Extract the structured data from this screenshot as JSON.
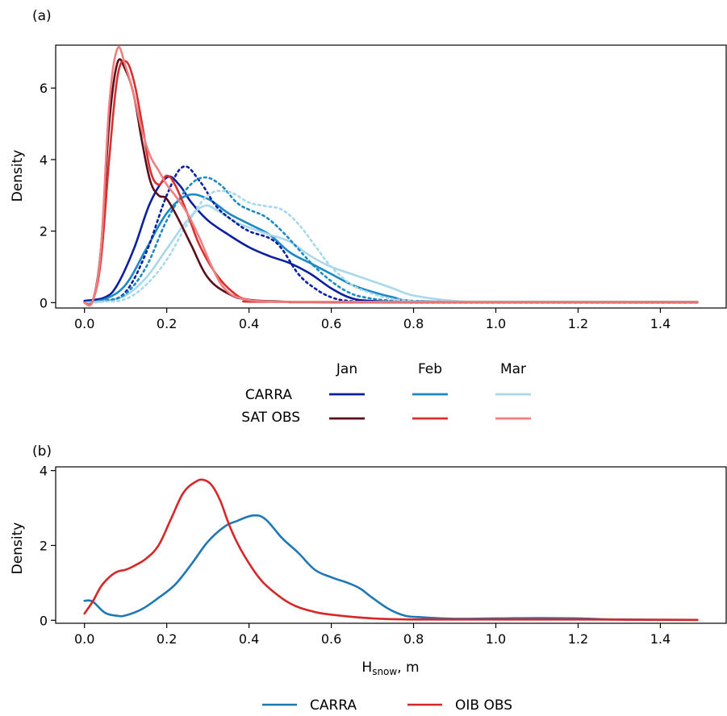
{
  "chart_data": [
    {
      "type": "line",
      "panel_label": "(a)",
      "xlabel": "",
      "ylabel": "Density",
      "xlim": [
        -0.07,
        1.56
      ],
      "ylim": [
        -0.15,
        7.2
      ],
      "xticks": [
        0.0,
        0.2,
        0.4,
        0.6,
        0.8,
        1.0,
        1.2,
        1.4
      ],
      "xtick_labels": [
        "0.0",
        "0.2",
        "0.4",
        "0.6",
        "0.8",
        "1.0",
        "1.2",
        "1.4"
      ],
      "yticks": [
        0,
        2,
        4,
        6
      ],
      "ytick_labels": [
        "0",
        "2",
        "4",
        "6"
      ],
      "grid": false,
      "legend": {
        "placement": "below",
        "columns": [
          "Jan",
          "Feb",
          "Mar"
        ],
        "rows": [
          "CARRA",
          "SAT OBS"
        ],
        "colors": [
          [
            "#0a1fa0",
            "#1b8ac4",
            "#a8d8ea"
          ],
          [
            "#5a0e1c",
            "#d8302e",
            "#f08080"
          ]
        ]
      },
      "series": [
        {
          "name": "CARRA Jan",
          "color": "#0a1fa0",
          "style": "solid",
          "x": [
            0.0,
            0.05,
            0.08,
            0.12,
            0.16,
            0.2,
            0.23,
            0.26,
            0.3,
            0.35,
            0.4,
            0.45,
            0.5,
            0.55,
            0.6,
            0.65,
            0.7,
            0.8,
            1.0,
            1.49
          ],
          "y": [
            0.05,
            0.15,
            0.5,
            1.5,
            2.8,
            3.5,
            3.3,
            2.8,
            2.3,
            1.9,
            1.55,
            1.3,
            1.1,
            0.8,
            0.4,
            0.12,
            0.05,
            0.02,
            0.02,
            0.02
          ]
        },
        {
          "name": "CARRA Feb",
          "color": "#1b8ac4",
          "style": "solid",
          "x": [
            0.0,
            0.05,
            0.1,
            0.15,
            0.2,
            0.25,
            0.3,
            0.35,
            0.4,
            0.45,
            0.5,
            0.55,
            0.6,
            0.65,
            0.7,
            0.75,
            0.8,
            1.0,
            1.49
          ],
          "y": [
            0.0,
            0.1,
            0.5,
            1.5,
            2.5,
            3.0,
            2.9,
            2.5,
            2.2,
            1.9,
            1.4,
            1.1,
            0.8,
            0.5,
            0.3,
            0.15,
            0.05,
            0.02,
            0.02
          ]
        },
        {
          "name": "CARRA Mar",
          "color": "#a8d8ea",
          "style": "solid",
          "x": [
            0.0,
            0.05,
            0.1,
            0.15,
            0.2,
            0.25,
            0.29,
            0.32,
            0.36,
            0.4,
            0.45,
            0.5,
            0.55,
            0.6,
            0.65,
            0.7,
            0.75,
            0.8,
            0.9,
            1.0,
            1.49
          ],
          "y": [
            0.0,
            0.05,
            0.2,
            0.7,
            1.5,
            2.3,
            2.7,
            2.6,
            2.3,
            2.1,
            1.9,
            1.7,
            1.3,
            1.0,
            0.8,
            0.6,
            0.4,
            0.2,
            0.05,
            0.03,
            0.03
          ]
        },
        {
          "name": "CARRA Jan (dotted)",
          "color": "#0a1fa0",
          "style": "dotted",
          "x": [
            0.0,
            0.05,
            0.1,
            0.15,
            0.2,
            0.24,
            0.28,
            0.32,
            0.36,
            0.4,
            0.45,
            0.48,
            0.52,
            0.56,
            0.6,
            0.64,
            0.7,
            0.8,
            1.49
          ],
          "y": [
            0.0,
            0.05,
            0.3,
            1.4,
            3.0,
            3.8,
            3.4,
            2.7,
            2.3,
            2.0,
            1.8,
            1.5,
            0.8,
            0.4,
            0.15,
            0.05,
            0.02,
            0.01,
            0.01
          ]
        },
        {
          "name": "CARRA Feb (dotted)",
          "color": "#1b8ac4",
          "style": "dotted",
          "x": [
            0.0,
            0.05,
            0.1,
            0.15,
            0.2,
            0.25,
            0.29,
            0.33,
            0.37,
            0.4,
            0.44,
            0.48,
            0.52,
            0.56,
            0.6,
            0.64,
            0.68,
            0.75,
            0.85,
            1.49
          ],
          "y": [
            0.0,
            0.05,
            0.25,
            1.0,
            2.3,
            3.2,
            3.5,
            3.3,
            2.8,
            2.6,
            2.4,
            2.0,
            1.5,
            1.0,
            0.6,
            0.3,
            0.15,
            0.05,
            0.02,
            0.02
          ]
        },
        {
          "name": "CARRA Mar (dotted)",
          "color": "#a8d8ea",
          "style": "dotted",
          "x": [
            0.0,
            0.05,
            0.1,
            0.15,
            0.2,
            0.25,
            0.3,
            0.35,
            0.4,
            0.44,
            0.48,
            0.52,
            0.56,
            0.6,
            0.65,
            0.7,
            0.75,
            0.8,
            0.9,
            1.49
          ],
          "y": [
            0.0,
            0.03,
            0.1,
            0.5,
            1.2,
            2.2,
            3.0,
            3.1,
            2.8,
            2.7,
            2.6,
            2.2,
            1.6,
            1.0,
            0.5,
            0.25,
            0.1,
            0.05,
            0.02,
            0.02
          ]
        },
        {
          "name": "SAT OBS Jan",
          "color": "#5a0e1c",
          "style": "solid",
          "x": [
            0.0,
            0.02,
            0.04,
            0.06,
            0.08,
            0.1,
            0.12,
            0.14,
            0.16,
            0.18,
            0.2,
            0.23,
            0.26,
            0.3,
            0.35,
            0.4,
            0.5,
            0.6,
            1.49
          ],
          "y": [
            0.0,
            0.05,
            1.5,
            5.0,
            6.7,
            6.5,
            5.8,
            4.5,
            3.4,
            3.0,
            2.9,
            2.3,
            1.6,
            0.7,
            0.25,
            0.08,
            0.02,
            0.01,
            0.01
          ]
        },
        {
          "name": "SAT OBS Feb",
          "color": "#d8302e",
          "style": "solid",
          "x": [
            0.0,
            0.02,
            0.04,
            0.06,
            0.08,
            0.1,
            0.12,
            0.14,
            0.16,
            0.18,
            0.2,
            0.22,
            0.25,
            0.28,
            0.32,
            0.36,
            0.4,
            0.5,
            1.49
          ],
          "y": [
            0.0,
            0.05,
            1.2,
            4.0,
            6.3,
            6.75,
            6.2,
            5.0,
            3.7,
            3.3,
            3.55,
            3.3,
            2.5,
            1.6,
            0.8,
            0.3,
            0.08,
            0.02,
            0.02
          ]
        },
        {
          "name": "SAT OBS Mar",
          "color": "#f08080",
          "style": "solid",
          "x": [
            0.0,
            0.02,
            0.04,
            0.06,
            0.08,
            0.1,
            0.12,
            0.14,
            0.16,
            0.18,
            0.2,
            0.22,
            0.25,
            0.28,
            0.31,
            0.34,
            0.38,
            0.45,
            0.6,
            1.49
          ],
          "y": [
            0.0,
            0.05,
            1.5,
            5.5,
            7.1,
            6.6,
            5.8,
            4.8,
            4.1,
            3.7,
            3.3,
            3.0,
            2.5,
            1.8,
            1.0,
            0.4,
            0.12,
            0.03,
            0.02,
            0.02
          ]
        }
      ]
    },
    {
      "type": "line",
      "panel_label": "(b)",
      "xlabel": "H",
      "xlabel_sub": "snow",
      "xlabel_suffix": ", m",
      "ylabel": "Density",
      "xlim": [
        -0.07,
        1.56
      ],
      "ylim": [
        -0.08,
        4.1
      ],
      "xticks": [
        0.0,
        0.2,
        0.4,
        0.6,
        0.8,
        1.0,
        1.2,
        1.4
      ],
      "xtick_labels": [
        "0.0",
        "0.2",
        "0.4",
        "0.6",
        "0.8",
        "1.0",
        "1.2",
        "1.4"
      ],
      "yticks": [
        0,
        2,
        4
      ],
      "ytick_labels": [
        "0",
        "2",
        "4"
      ],
      "grid": false,
      "legend": {
        "placement": "below"
      },
      "series": [
        {
          "name": "CARRA",
          "color": "#1f77b4",
          "style": "solid",
          "x": [
            0.0,
            0.02,
            0.05,
            0.08,
            0.1,
            0.14,
            0.18,
            0.22,
            0.26,
            0.3,
            0.34,
            0.37,
            0.41,
            0.44,
            0.48,
            0.52,
            0.56,
            0.6,
            0.64,
            0.67,
            0.7,
            0.74,
            0.78,
            0.82,
            0.9,
            1.0,
            1.1,
            1.2,
            1.3,
            1.49
          ],
          "y": [
            0.52,
            0.5,
            0.2,
            0.12,
            0.13,
            0.3,
            0.6,
            0.95,
            1.5,
            2.1,
            2.5,
            2.65,
            2.8,
            2.7,
            2.2,
            1.8,
            1.35,
            1.15,
            1.0,
            0.85,
            0.6,
            0.3,
            0.12,
            0.08,
            0.04,
            0.05,
            0.06,
            0.05,
            0.02,
            0.01
          ]
        },
        {
          "name": "OIB OBS",
          "color": "#d62728",
          "style": "solid",
          "x": [
            0.0,
            0.02,
            0.04,
            0.06,
            0.08,
            0.1,
            0.12,
            0.15,
            0.18,
            0.21,
            0.24,
            0.27,
            0.29,
            0.31,
            0.33,
            0.35,
            0.37,
            0.39,
            0.42,
            0.45,
            0.5,
            0.55,
            0.6,
            0.7,
            0.8,
            1.0,
            1.2,
            1.49
          ],
          "y": [
            0.18,
            0.5,
            0.9,
            1.15,
            1.3,
            1.35,
            1.45,
            1.65,
            2.0,
            2.7,
            3.4,
            3.7,
            3.75,
            3.6,
            3.2,
            2.6,
            2.1,
            1.7,
            1.2,
            0.85,
            0.45,
            0.25,
            0.15,
            0.05,
            0.02,
            0.02,
            0.02,
            0.01
          ]
        }
      ]
    }
  ]
}
